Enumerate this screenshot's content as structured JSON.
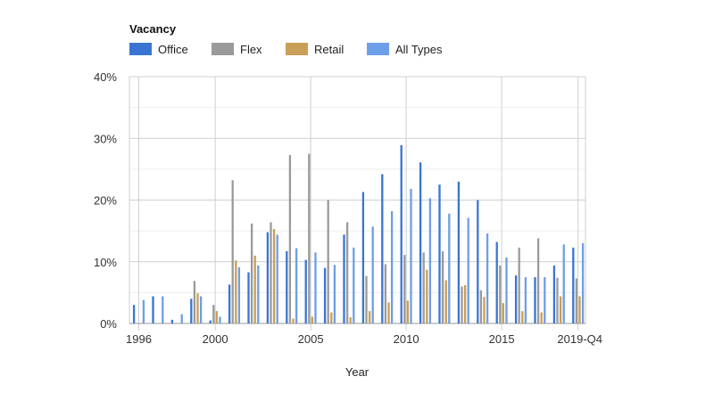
{
  "chart_data": {
    "type": "bar",
    "title": "Vacancy",
    "xlabel": "Year",
    "ylabel": "",
    "ylim": [
      0,
      40
    ],
    "y_ticks": [
      "0%",
      "10%",
      "20%",
      "30%",
      "40%"
    ],
    "x_tick_labels": [
      "1996",
      "2000",
      "2005",
      "2010",
      "2015",
      "2019-Q4"
    ],
    "legend_position": "top-left",
    "grid": true,
    "categories": [
      "1996",
      "1997",
      "1998",
      "1999",
      "2000",
      "2001",
      "2002",
      "2003",
      "2004",
      "2005",
      "2006",
      "2007",
      "2008",
      "2009",
      "2010",
      "2011",
      "2012",
      "2013",
      "2014",
      "2015",
      "2016",
      "2017",
      "2018",
      "2019-Q4"
    ],
    "series": [
      {
        "name": "Office",
        "color": "#3a75d4",
        "values": [
          3.0,
          4.4,
          0.6,
          4.0,
          0.5,
          6.3,
          8.3,
          14.8,
          11.7,
          10.3,
          9.0,
          14.4,
          21.3,
          24.2,
          28.9,
          26.1,
          22.5,
          23.0,
          20.0,
          13.2,
          7.8,
          7.5,
          9.4,
          12.3
        ]
      },
      {
        "name": "Flex",
        "color": "#9a9a9a",
        "values": [
          0,
          0,
          0,
          6.9,
          3.0,
          23.2,
          16.2,
          16.4,
          27.3,
          27.5,
          20.0,
          16.4,
          7.7,
          9.6,
          11.1,
          11.5,
          11.7,
          6.0,
          5.4,
          9.4,
          12.3,
          13.8,
          7.4,
          7.3
        ]
      },
      {
        "name": "Retail",
        "color": "#c99e56",
        "values": [
          0,
          0,
          0,
          4.9,
          2.0,
          10.2,
          11.0,
          15.3,
          0.8,
          1.1,
          1.8,
          1.0,
          2.0,
          3.4,
          3.7,
          8.7,
          7.0,
          6.2,
          4.3,
          3.3,
          2.0,
          1.8,
          4.4,
          4.4
        ]
      },
      {
        "name": "All Types",
        "color": "#6d9ee8",
        "values": [
          3.8,
          4.4,
          1.5,
          4.4,
          1.1,
          9.1,
          9.4,
          14.4,
          12.2,
          11.5,
          9.5,
          12.3,
          15.7,
          18.2,
          21.8,
          20.3,
          17.8,
          17.1,
          14.6,
          10.7,
          7.5,
          7.5,
          12.8,
          13.0
        ]
      }
    ]
  }
}
